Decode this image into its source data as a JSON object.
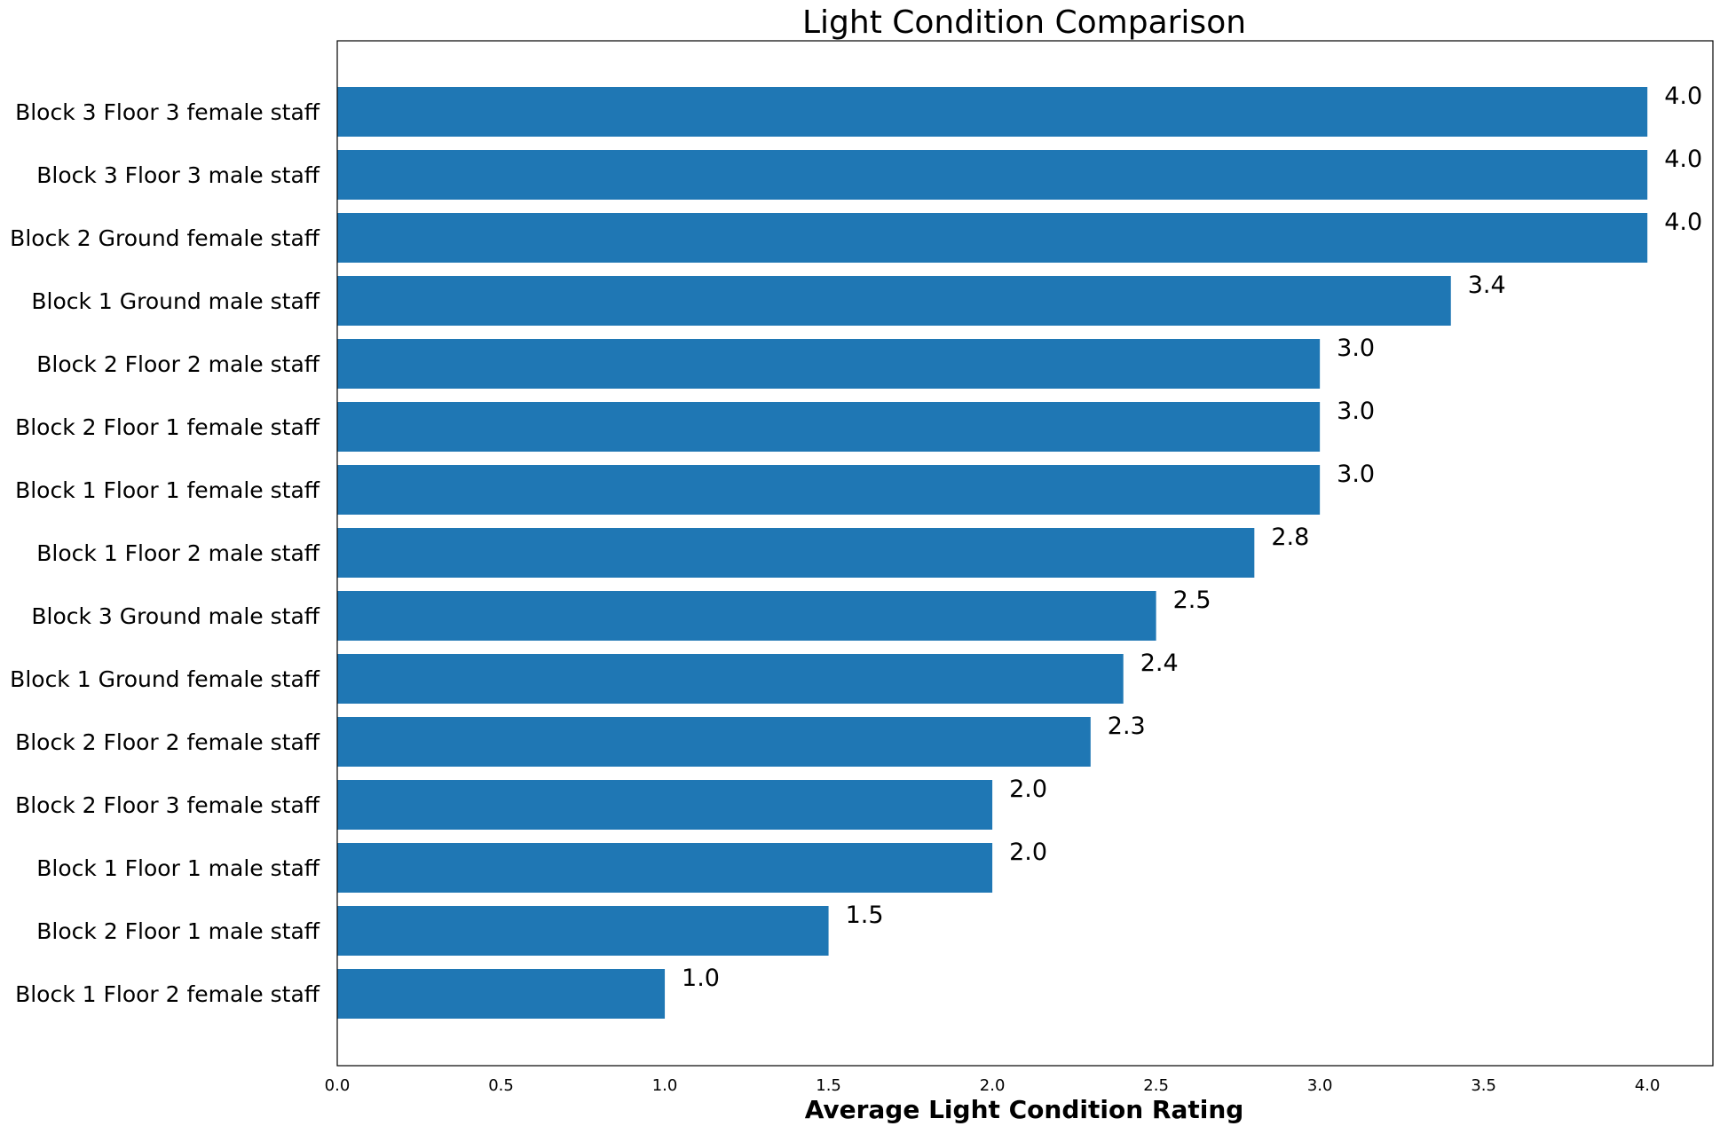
{
  "chart_data": {
    "type": "bar",
    "orientation": "horizontal",
    "title": "Light Condition Comparison",
    "xlabel": "Average Light Condition Rating",
    "ylabel": "",
    "xlim": [
      0.0,
      4.2
    ],
    "x_ticks": [
      "0.0",
      "0.5",
      "1.0",
      "1.5",
      "2.0",
      "2.5",
      "3.0",
      "3.5",
      "4.0"
    ],
    "grid": false,
    "bar_color": "#1f77b4",
    "categories": [
      "Block 3 Floor 3 female staff",
      "Block 3 Floor 3 male staff",
      "Block 2 Ground female staff",
      "Block 1 Ground male staff",
      "Block 2 Floor 2 male staff",
      "Block 2 Floor 1 female staff",
      "Block 1 Floor 1 female staff",
      "Block 1 Floor 2 male staff",
      "Block 3 Ground male staff",
      "Block 1 Ground female staff",
      "Block 2 Floor 2 female staff",
      "Block 2 Floor 3 female staff",
      "Block 1 Floor 1 male staff",
      "Block 2 Floor 1 male staff",
      "Block 1 Floor 2 female staff"
    ],
    "values": [
      4.0,
      4.0,
      4.0,
      3.4,
      3.0,
      3.0,
      3.0,
      2.8,
      2.5,
      2.4,
      2.3,
      2.0,
      2.0,
      1.5,
      1.0
    ],
    "value_labels": [
      "4.0",
      "4.0",
      "4.0",
      "3.4",
      "3.0",
      "3.0",
      "3.0",
      "2.8",
      "2.5",
      "2.4",
      "2.3",
      "2.0",
      "2.0",
      "1.5",
      "1.0"
    ]
  }
}
